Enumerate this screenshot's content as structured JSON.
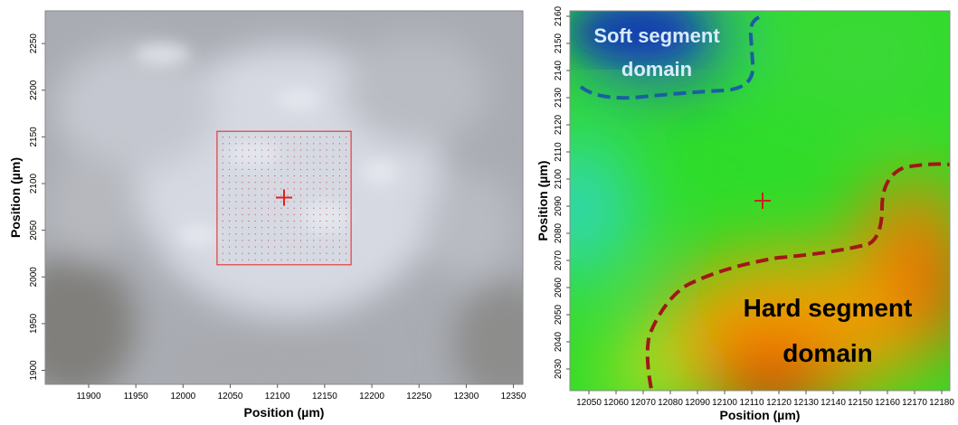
{
  "chart_data": [
    {
      "type": "image",
      "xlabel": "Position  (µm)",
      "ylabel": "Position  (µm)",
      "xlim": [
        11854,
        12360
      ],
      "ylim": [
        1885,
        2285
      ],
      "xticks": [
        11900,
        11950,
        12000,
        12050,
        12100,
        12150,
        12200,
        12250,
        12300,
        12350
      ],
      "yticks": [
        1900,
        1950,
        2000,
        2050,
        2100,
        2150,
        2200,
        2250
      ],
      "region": {
        "x": [
          12036,
          12178
        ],
        "y": [
          2013,
          2156
        ],
        "color": "#e02020"
      },
      "marker": {
        "x": 12107,
        "y": 2085,
        "color": "#e02020"
      }
    },
    {
      "type": "heatmap",
      "xlabel": "Position  (µm)",
      "ylabel": "Position  (µm)",
      "xlim": [
        12043,
        12183
      ],
      "ylim": [
        2022,
        2162
      ],
      "xticks": [
        12050,
        12060,
        12070,
        12080,
        12090,
        12100,
        12110,
        12120,
        12130,
        12140,
        12150,
        12160,
        12170,
        12180
      ],
      "yticks": [
        2030,
        2040,
        2050,
        2060,
        2070,
        2080,
        2090,
        2100,
        2110,
        2120,
        2130,
        2140,
        2150,
        2160
      ],
      "marker": {
        "x": 12114,
        "y": 2092,
        "color": "#d02020"
      },
      "annotations": [
        {
          "lines": [
            "Soft segment",
            "domain"
          ],
          "color": "#d8ecff"
        },
        {
          "lines": [
            "Hard segment",
            "domain"
          ],
          "color": "#000000"
        }
      ]
    }
  ]
}
